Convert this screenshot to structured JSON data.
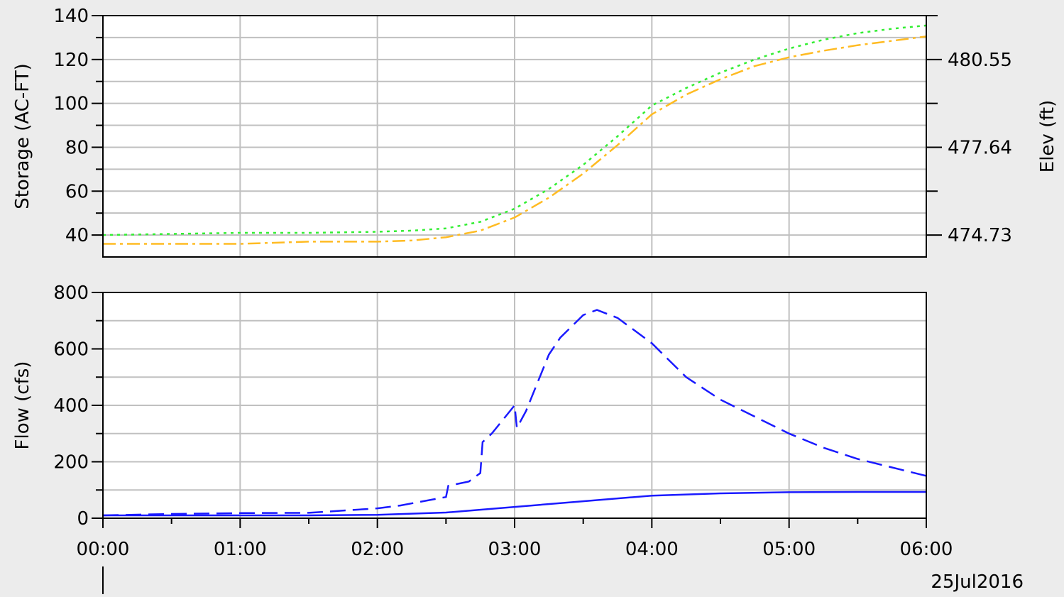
{
  "colors": {
    "background": "#ececec",
    "plot_background": "#ffffff",
    "grid": "#c0c0c0",
    "green_series": "#33ee33",
    "orange_series": "#ffbb22",
    "blue_series": "#1a1aff"
  },
  "date_label": "25Jul2016",
  "x_tick_labels": [
    "00:00",
    "01:00",
    "02:00",
    "03:00",
    "04:00",
    "05:00",
    "06:00"
  ],
  "chart_data": [
    {
      "type": "line",
      "panel": "top",
      "xlabel": "",
      "ylabel": "Storage (AC-FT)",
      "y2label": "Elev (ft)",
      "x_range": [
        "00:00",
        "06:00"
      ],
      "ylim": [
        30,
        140
      ],
      "y_ticks": [
        40,
        60,
        80,
        100,
        120,
        140
      ],
      "y2_ticks": [
        "474.73",
        "477.64",
        "480.55"
      ],
      "grid": true,
      "series": [
        {
          "style": "dotted",
          "color": "#33ee33",
          "axis": "left",
          "x": [
            "00:00",
            "00:30",
            "01:00",
            "01:30",
            "02:00",
            "02:15",
            "02:30",
            "02:45",
            "03:00",
            "03:15",
            "03:30",
            "03:45",
            "04:00",
            "04:15",
            "04:30",
            "04:45",
            "05:00",
            "05:15",
            "05:30",
            "05:45",
            "06:00"
          ],
          "values": [
            40,
            40.5,
            41,
            41,
            41.5,
            42,
            43,
            46,
            52,
            61,
            72,
            85,
            99,
            107,
            114,
            120,
            125,
            129,
            132,
            134,
            135.5
          ]
        },
        {
          "style": "dash-dot",
          "color": "#ffbb22",
          "axis": "left",
          "x": [
            "00:00",
            "00:30",
            "01:00",
            "01:30",
            "02:00",
            "02:15",
            "02:30",
            "02:45",
            "03:00",
            "03:15",
            "03:30",
            "03:45",
            "04:00",
            "04:15",
            "04:30",
            "04:45",
            "05:00",
            "05:15",
            "05:30",
            "05:45",
            "06:00"
          ],
          "values": [
            36,
            36,
            36,
            37,
            37,
            37.5,
            39,
            42,
            48,
            57,
            68,
            81,
            95,
            104,
            111,
            117,
            121,
            124,
            126.5,
            128.5,
            130.5
          ]
        }
      ]
    },
    {
      "type": "line",
      "panel": "bottom",
      "xlabel": "",
      "ylabel": "Flow (cfs)",
      "ylim": [
        0,
        800
      ],
      "y_ticks": [
        0,
        200,
        400,
        600,
        800
      ],
      "y_minor_ticks": [
        100,
        300,
        500,
        700
      ],
      "grid": true,
      "series": [
        {
          "style": "dashed",
          "color": "#1a1aff",
          "x": [
            "00:00",
            "00:30",
            "01:00",
            "01:30",
            "02:00",
            "02:10",
            "02:20",
            "02:30",
            "02:31",
            "02:40",
            "02:45",
            "02:46",
            "02:50",
            "03:00",
            "03:01",
            "03:05",
            "03:10",
            "03:15",
            "03:20",
            "03:30",
            "03:36",
            "03:45",
            "04:00",
            "04:15",
            "04:30",
            "04:45",
            "05:00",
            "05:15",
            "05:30",
            "05:45",
            "06:00"
          ],
          "values": [
            10,
            15,
            18,
            19,
            35,
            45,
            60,
            75,
            115,
            130,
            160,
            270,
            300,
            400,
            320,
            380,
            480,
            580,
            640,
            720,
            738,
            710,
            620,
            500,
            420,
            360,
            300,
            250,
            210,
            180,
            150
          ]
        },
        {
          "style": "solid",
          "color": "#1a1aff",
          "x": [
            "00:00",
            "00:30",
            "01:00",
            "01:30",
            "02:00",
            "02:30",
            "03:00",
            "03:30",
            "04:00",
            "04:30",
            "05:00",
            "05:30",
            "06:00"
          ],
          "values": [
            10,
            10,
            10,
            10,
            12,
            20,
            40,
            60,
            80,
            88,
            92,
            93,
            93
          ]
        }
      ]
    }
  ]
}
